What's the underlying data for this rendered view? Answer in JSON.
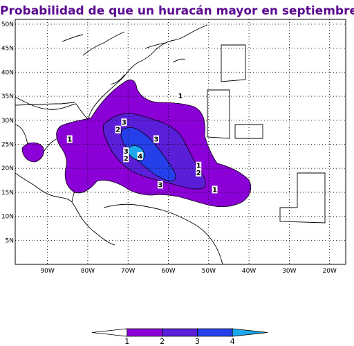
{
  "title": "Probabilidad de que un huracán mayor en septiembre",
  "chart_data": {
    "type": "heatmap",
    "x_ticks": [
      "90W",
      "80W",
      "70W",
      "60W",
      "50W",
      "40W",
      "30W",
      "20W"
    ],
    "y_ticks": [
      "5N",
      "10N",
      "15N",
      "20N",
      "25N",
      "30N",
      "35N",
      "40N",
      "45N",
      "50N"
    ],
    "xlim": [
      "-98",
      "-16"
    ],
    "ylim": [
      0,
      51
    ],
    "grid": "dotted",
    "colorbar": {
      "levels": [
        1,
        2,
        3,
        4
      ],
      "labels": [
        "1",
        "2",
        "3",
        "4"
      ],
      "colors": [
        "#ffffff",
        "#8a00d6",
        "#5a1ed8",
        "#2540ea",
        "#1ea8ee"
      ]
    },
    "contour_labels": [
      {
        "text": "3",
        "lon": -71,
        "lat": 29.5
      },
      {
        "text": "2",
        "lon": -72.5,
        "lat": 28
      },
      {
        "text": "3",
        "lon": -63,
        "lat": 26
      },
      {
        "text": "1",
        "lon": -84.5,
        "lat": 26
      },
      {
        "text": "1",
        "lon": -52.5,
        "lat": 20.5
      },
      {
        "text": "2",
        "lon": -52.5,
        "lat": 19
      },
      {
        "text": "3",
        "lon": -70.5,
        "lat": 23.5
      },
      {
        "text": "2",
        "lon": -70.5,
        "lat": 22
      },
      {
        "text": "4",
        "lon": -67,
        "lat": 22.5
      },
      {
        "text": "3",
        "lon": -62,
        "lat": 16.5
      },
      {
        "text": "1",
        "lon": -48.5,
        "lat": 15.5
      },
      {
        "text": "1",
        "lon": -57,
        "lat": 35
      }
    ]
  }
}
